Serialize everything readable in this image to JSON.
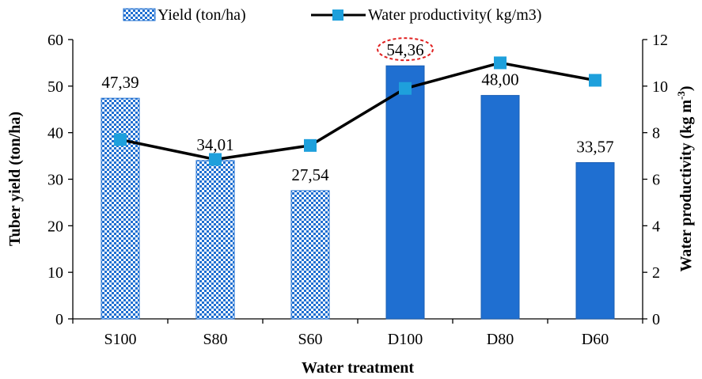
{
  "chart_data": {
    "type": "bar",
    "categories": [
      "S100",
      "S80",
      "S60",
      "D100",
      "D80",
      "D60"
    ],
    "series": [
      {
        "name": "Yield (ton/ha)",
        "kind": "bar",
        "axis": "left",
        "values": [
          47.39,
          34.01,
          27.54,
          54.36,
          48.0,
          33.57
        ],
        "labels": [
          "47,39",
          "34,01",
          "27,54",
          "54,36",
          "48,00",
          "33,57"
        ],
        "fill_styles": [
          "pattern",
          "pattern",
          "pattern",
          "solid",
          "solid",
          "solid"
        ],
        "color": "#1f6fd1"
      },
      {
        "name": "Water productivity( kg/m3)",
        "kind": "line",
        "axis": "right",
        "values": [
          7.7,
          6.85,
          7.45,
          9.9,
          11.0,
          10.25
        ],
        "color": "#000000",
        "marker_color": "#1ea0dc"
      }
    ],
    "xlabel": "Water treatment",
    "ylabel": "Tuber yield (ton/ha)",
    "y2label": "Water productivity (kg m-3)",
    "ylim": [
      0,
      60
    ],
    "y2lim": [
      0,
      12
    ],
    "yticks": [
      0,
      10,
      20,
      30,
      40,
      50,
      60
    ],
    "y2ticks": [
      0,
      2,
      4,
      6,
      8,
      10,
      12
    ],
    "highlighted_label_index": 3,
    "highlight_color": "#e02020",
    "legend": "top",
    "grid": false
  }
}
